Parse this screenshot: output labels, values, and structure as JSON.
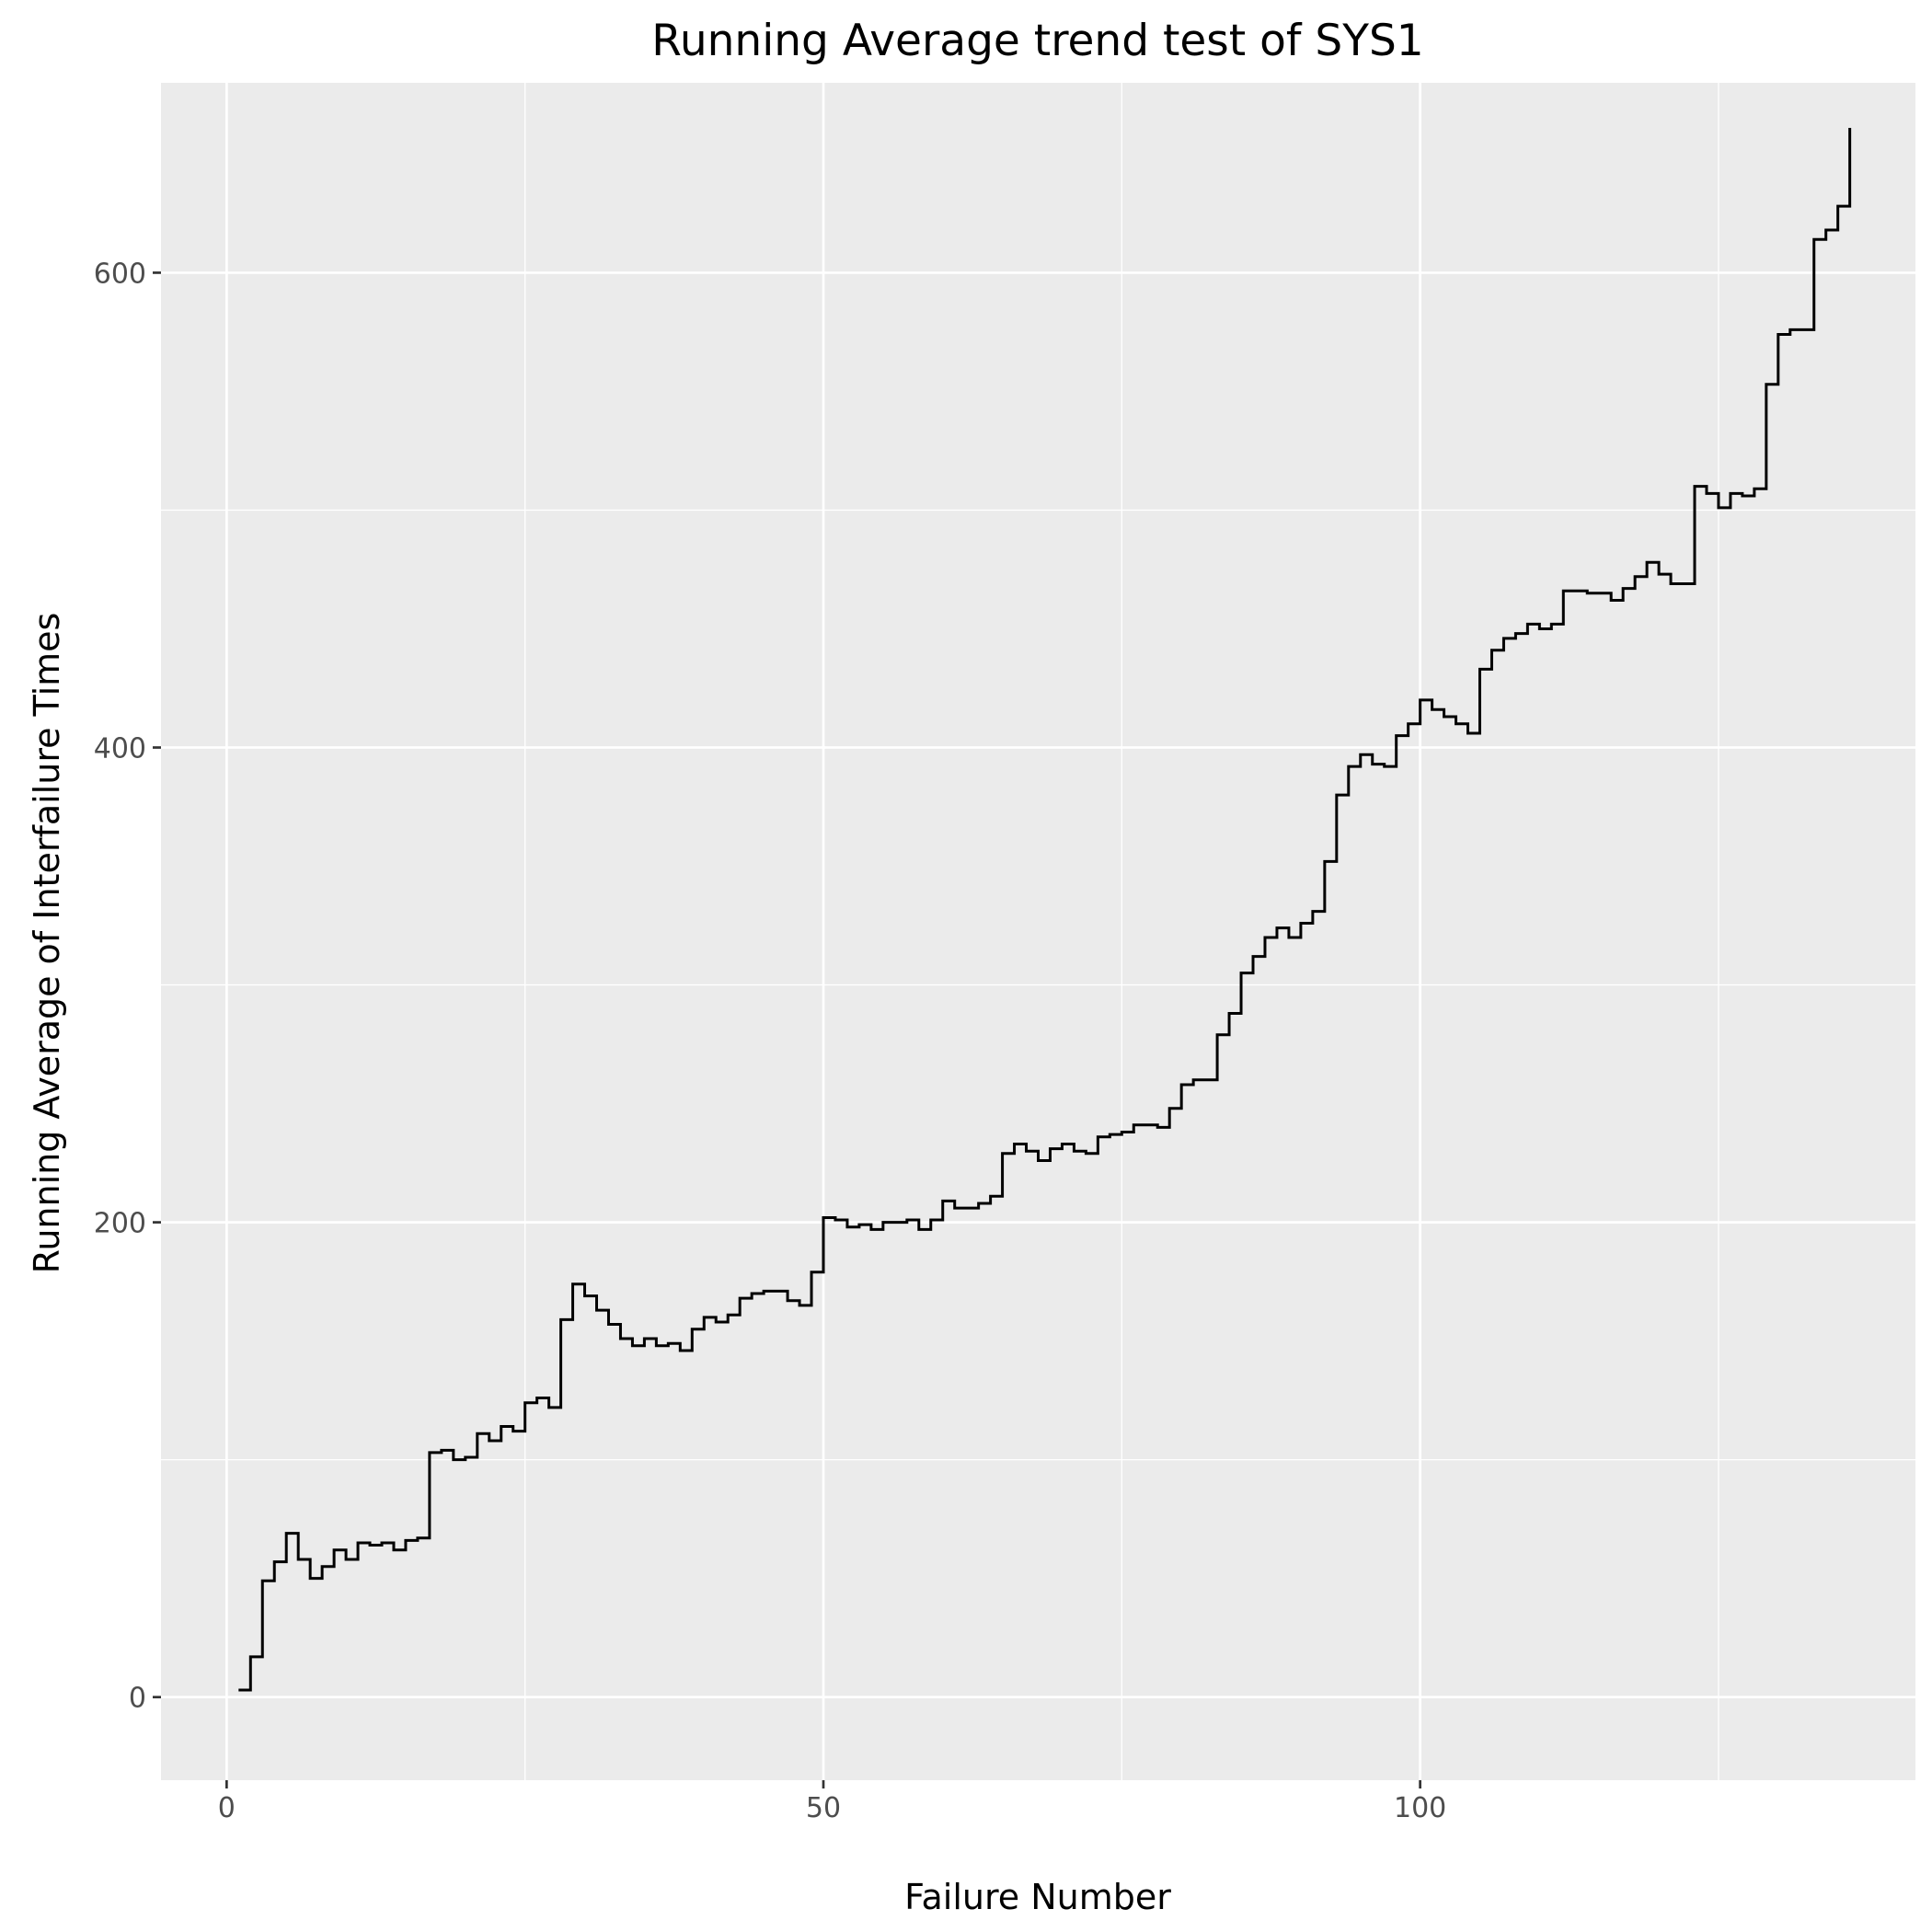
{
  "chart_data": {
    "type": "line",
    "step": true,
    "title": "Running Average trend test of SYS1",
    "xlabel": "Failure Number",
    "ylabel": "Running Average of Interfailure Times",
    "xlim": [
      -5.5,
      141.5
    ],
    "ylim": [
      -35,
      680
    ],
    "x_ticks": [
      0,
      50,
      100
    ],
    "x_tick_labels": [
      "0",
      "50",
      "100"
    ],
    "x_minor_ticks": [
      25,
      75,
      125
    ],
    "y_ticks": [
      0,
      200,
      400,
      600
    ],
    "y_tick_labels": [
      "0",
      "200",
      "400",
      "600"
    ],
    "y_minor_ticks": [
      100,
      300,
      500
    ],
    "grid": true,
    "legend": "none",
    "colors": {
      "panel": "#ebebeb",
      "grid": "#ffffff",
      "line": "#000000",
      "tick_text": "#4d4d4d",
      "tick_mark": "#333333"
    },
    "series": [
      {
        "x": [
          1,
          2,
          3,
          4,
          5,
          6,
          7,
          8,
          9,
          10,
          11,
          12,
          13,
          14,
          15,
          16,
          17,
          18,
          19,
          20,
          21,
          22,
          23,
          24,
          25,
          26,
          27,
          28,
          29,
          30,
          31,
          32,
          33,
          34,
          35,
          36,
          37,
          38,
          39,
          40,
          41,
          42,
          43,
          44,
          45,
          46,
          47,
          48,
          49,
          50,
          51,
          52,
          53,
          54,
          55,
          56,
          57,
          58,
          59,
          60,
          61,
          62,
          63,
          64,
          65,
          66,
          67,
          68,
          69,
          70,
          71,
          72,
          73,
          74,
          75,
          76,
          77,
          78,
          79,
          80,
          81,
          82,
          83,
          84,
          85,
          86,
          87,
          88,
          89,
          90,
          91,
          92,
          93,
          94,
          95,
          96,
          97,
          98,
          99,
          100,
          101,
          102,
          103,
          104,
          105,
          106,
          107,
          108,
          109,
          110,
          111,
          112,
          113,
          114,
          115,
          116,
          117,
          118,
          119,
          120,
          121,
          122,
          123,
          124,
          125,
          126,
          127,
          128,
          129,
          130,
          131,
          132,
          133,
          134,
          135,
          136
        ],
        "y": [
          3,
          17,
          49,
          57,
          69,
          58,
          50,
          55,
          62,
          58,
          65,
          64,
          65,
          62,
          66,
          67,
          103,
          104,
          100,
          101,
          111,
          108,
          114,
          112,
          124,
          126,
          122,
          159,
          174,
          169,
          163,
          157,
          151,
          148,
          151,
          148,
          149,
          146,
          155,
          160,
          158,
          161,
          168,
          170,
          171,
          171,
          167,
          165,
          179,
          202,
          201,
          198,
          199,
          197,
          200,
          200,
          201,
          197,
          201,
          209,
          206,
          206,
          208,
          211,
          229,
          233,
          230,
          226,
          231,
          233,
          230,
          229,
          236,
          237,
          238,
          241,
          241,
          240,
          248,
          258,
          260,
          260,
          279,
          288,
          305,
          312,
          320,
          324,
          320,
          326,
          331,
          352,
          380,
          392,
          397,
          393,
          392,
          405,
          410,
          420,
          416,
          413,
          410,
          406,
          433,
          441,
          446,
          448,
          452,
          450,
          452,
          466,
          466,
          465,
          465,
          462,
          467,
          472,
          478,
          473,
          469,
          469,
          510,
          507,
          501,
          507,
          506,
          509,
          553,
          574,
          576,
          576,
          614,
          618,
          628,
          661
        ]
      }
    ]
  }
}
